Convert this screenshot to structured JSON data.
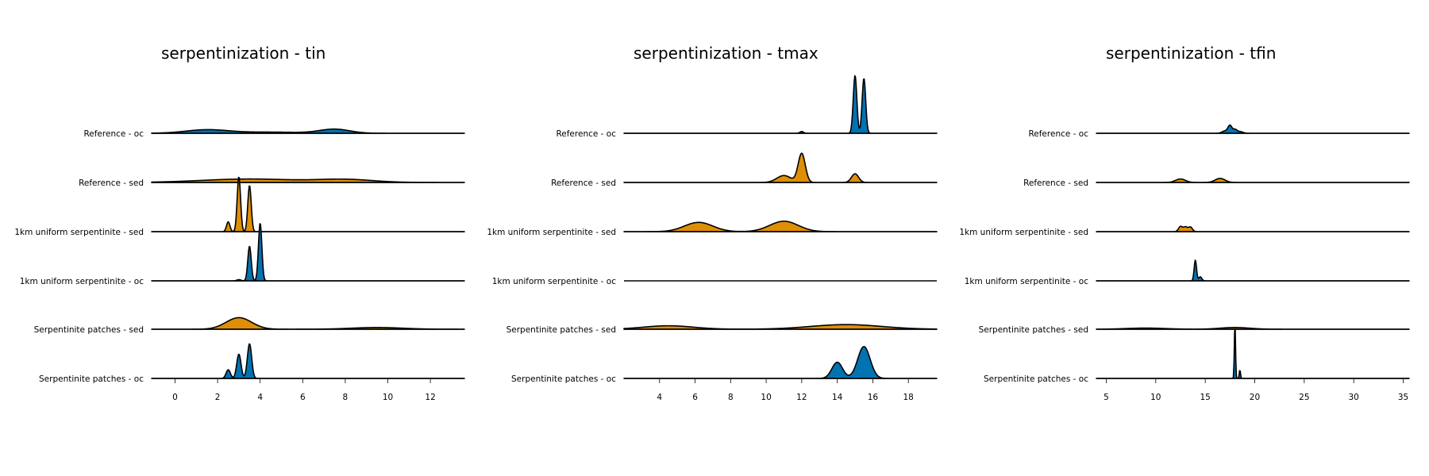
{
  "colors": {
    "oc": "#0173b2",
    "sed": "#de8f05"
  },
  "chart_data": [
    {
      "type": "ridgeline",
      "title": "serpentinization - tin",
      "xlim": [
        -1.1,
        13.6
      ],
      "xticks": [
        0,
        2,
        4,
        6,
        8,
        10,
        12
      ],
      "rows": [
        {
          "name": "Reference - oc",
          "group": "oc",
          "peaks": [
            [
              1.5,
              0.06,
              1.0
            ],
            [
              4.5,
              0.02,
              1.5
            ],
            [
              7.5,
              0.07,
              0.7
            ]
          ]
        },
        {
          "name": "Reference - sed",
          "group": "sed",
          "peaks": [
            [
              3.5,
              0.06,
              2.2
            ],
            [
              8.0,
              0.05,
              1.3
            ]
          ]
        },
        {
          "name": "1km uniform serpentinite - sed",
          "group": "sed",
          "peaks": [
            [
              2.5,
              0.17,
              0.08
            ],
            [
              3.0,
              0.95,
              0.08
            ],
            [
              3.5,
              0.8,
              0.08
            ]
          ]
        },
        {
          "name": "1km uniform serpentinite - oc",
          "group": "oc",
          "peaks": [
            [
              3.0,
              0.02,
              0.1
            ],
            [
              3.5,
              0.6,
              0.08
            ],
            [
              4.0,
              1.0,
              0.08
            ]
          ]
        },
        {
          "name": "Serpentinite patches - sed",
          "group": "sed",
          "peaks": [
            [
              3.0,
              0.2,
              0.6
            ],
            [
              9.5,
              0.03,
              1.2
            ]
          ]
        },
        {
          "name": "Serpentinite patches - oc",
          "group": "oc",
          "peaks": [
            [
              2.5,
              0.15,
              0.1
            ],
            [
              3.0,
              0.42,
              0.1
            ],
            [
              3.5,
              0.6,
              0.1
            ]
          ]
        }
      ]
    },
    {
      "type": "ridgeline",
      "title": "serpentinization - tmax",
      "xlim": [
        2.0,
        19.6
      ],
      "xticks": [
        4,
        6,
        8,
        10,
        12,
        14,
        16,
        18
      ],
      "rows": [
        {
          "name": "Reference - oc",
          "group": "oc",
          "peaks": [
            [
              12.0,
              0.03,
              0.1
            ],
            [
              15.0,
              1.0,
              0.1
            ],
            [
              15.5,
              0.95,
              0.1
            ]
          ]
        },
        {
          "name": "Reference - sed",
          "group": "sed",
          "peaks": [
            [
              11.0,
              0.12,
              0.4
            ],
            [
              12.0,
              0.5,
              0.2
            ],
            [
              15.0,
              0.15,
              0.2
            ]
          ]
        },
        {
          "name": "1km uniform serpentinite - sed",
          "group": "sed",
          "peaks": [
            [
              6.2,
              0.16,
              0.8
            ],
            [
              11.0,
              0.18,
              0.8
            ]
          ]
        },
        {
          "name": "1km uniform serpentinite - oc",
          "group": "oc",
          "peaks": []
        },
        {
          "name": "Serpentinite patches - sed",
          "group": "sed",
          "peaks": [
            [
              4.5,
              0.06,
              1.4
            ],
            [
              14.5,
              0.08,
              2.0
            ]
          ]
        },
        {
          "name": "Serpentinite patches - oc",
          "group": "oc",
          "peaks": [
            [
              14.0,
              0.28,
              0.3
            ],
            [
              15.5,
              0.55,
              0.35
            ]
          ]
        }
      ]
    },
    {
      "type": "ridgeline",
      "title": "serpentinization - tfin",
      "xlim": [
        4.0,
        35.6
      ],
      "xticks": [
        5,
        10,
        15,
        20,
        25,
        30,
        35
      ],
      "rows": [
        {
          "name": "Reference - oc",
          "group": "oc",
          "peaks": [
            [
              17.0,
              0.04,
              0.3
            ],
            [
              17.5,
              0.13,
              0.2
            ],
            [
              18.0,
              0.06,
              0.2
            ],
            [
              18.5,
              0.03,
              0.3
            ]
          ]
        },
        {
          "name": "Reference - sed",
          "group": "sed",
          "peaks": [
            [
              12.5,
              0.06,
              0.5
            ],
            [
              16.5,
              0.07,
              0.5
            ]
          ]
        },
        {
          "name": "1km uniform serpentinite - sed",
          "group": "sed",
          "peaks": [
            [
              12.5,
              0.09,
              0.2
            ],
            [
              13.0,
              0.08,
              0.2
            ],
            [
              13.5,
              0.08,
              0.2
            ]
          ]
        },
        {
          "name": "1km uniform serpentinite - oc",
          "group": "oc",
          "peaks": [
            [
              14.0,
              0.36,
              0.12
            ],
            [
              14.5,
              0.07,
              0.15
            ]
          ]
        },
        {
          "name": "Serpentinite patches - sed",
          "group": "sed",
          "peaks": [
            [
              9.0,
              0.02,
              2.0
            ],
            [
              18.0,
              0.03,
              1.5
            ]
          ]
        },
        {
          "name": "Serpentinite patches - oc",
          "group": "oc",
          "peaks": [
            [
              18.0,
              0.95,
              0.06
            ],
            [
              18.5,
              0.15,
              0.06
            ]
          ]
        }
      ]
    }
  ]
}
